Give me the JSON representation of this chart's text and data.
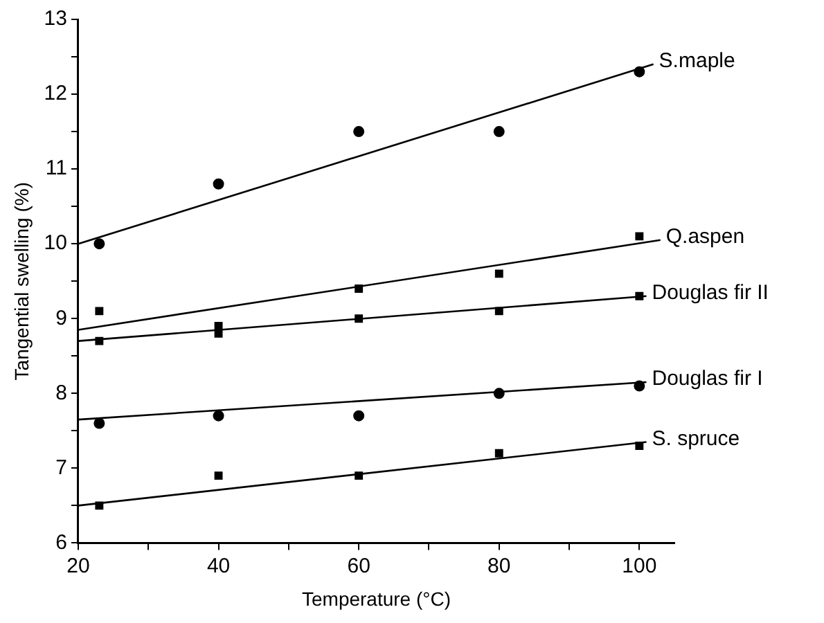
{
  "chart_data": {
    "type": "scatter",
    "xlabel": "Temperature (°C)",
    "ylabel": "Tangential swelling (%)",
    "xlim": [
      20,
      105
    ],
    "xticks": [
      20,
      {
        "value": 30,
        "label": null
      },
      40,
      {
        "value": 50,
        "label": null
      },
      60,
      {
        "value": 70,
        "label": null
      },
      80,
      {
        "value": 90,
        "label": null
      },
      100
    ],
    "ylim": [
      6,
      13
    ],
    "yticks": [
      6,
      {
        "value": 6.5,
        "label": null
      },
      7,
      {
        "value": 7.5,
        "label": null
      },
      8,
      {
        "value": 8.5,
        "label": null
      },
      9,
      {
        "value": 9.5,
        "label": null
      },
      10,
      {
        "value": 10.5,
        "label": null
      },
      11,
      {
        "value": 11.5,
        "label": null
      },
      12,
      {
        "value": 12.5,
        "label": null
      },
      13
    ],
    "grid": false,
    "legend": false,
    "series": [
      {
        "type": "scatter",
        "marker": "circle",
        "color": "#000000",
        "x": [
          23,
          40,
          60,
          80,
          100
        ],
        "values": [
          10.0,
          10.8,
          11.5,
          11.5,
          12.3
        ]
      },
      {
        "type": "line",
        "name": "S.maple",
        "color": "#000000",
        "marker": "none",
        "x": [
          20,
          102
        ],
        "values": [
          10.0,
          12.4
        ]
      },
      {
        "type": "scatter",
        "marker": "square",
        "color": "#000000",
        "x": [
          23,
          40,
          60,
          80,
          100
        ],
        "values": [
          9.1,
          8.9,
          9.4,
          9.6,
          10.1
        ]
      },
      {
        "type": "line",
        "name": "Q.aspen",
        "color": "#000000",
        "marker": "none",
        "x": [
          20,
          103
        ],
        "values": [
          8.85,
          10.05
        ]
      },
      {
        "type": "scatter",
        "marker": "square",
        "color": "#000000",
        "x": [
          23,
          40,
          60,
          80,
          100
        ],
        "values": [
          8.7,
          8.8,
          9.0,
          9.1,
          9.3
        ]
      },
      {
        "type": "line",
        "name": "Douglas fir II",
        "color": "#000000",
        "marker": "none",
        "x": [
          20,
          101
        ],
        "values": [
          8.7,
          9.3
        ]
      },
      {
        "type": "scatter",
        "marker": "circle",
        "color": "#000000",
        "x": [
          23,
          40,
          60,
          80,
          100
        ],
        "values": [
          7.6,
          7.7,
          7.7,
          8.0,
          8.1
        ]
      },
      {
        "type": "line",
        "name": "Douglas fir I",
        "color": "#000000",
        "marker": "none",
        "x": [
          20,
          101
        ],
        "values": [
          7.65,
          8.15
        ]
      },
      {
        "type": "scatter",
        "marker": "square",
        "color": "#000000",
        "x": [
          23,
          40,
          60,
          80,
          100
        ],
        "values": [
          6.5,
          6.9,
          6.9,
          7.2,
          7.3
        ]
      },
      {
        "type": "line",
        "name": "S. spruce",
        "color": "#000000",
        "marker": "none",
        "x": [
          20,
          101
        ],
        "values": [
          6.5,
          7.35
        ]
      }
    ]
  }
}
